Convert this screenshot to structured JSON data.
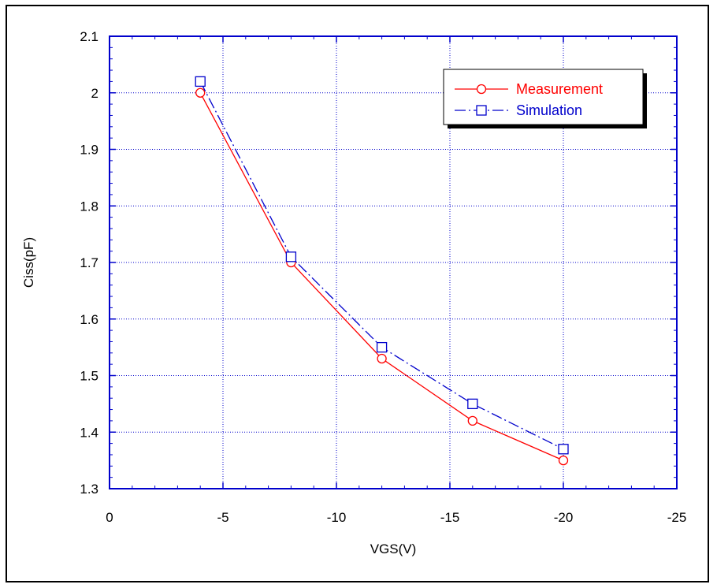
{
  "chart_data": {
    "type": "line",
    "title": "",
    "xlabel": "VGS(V)",
    "ylabel": "Ciss(pF)",
    "xlim": [
      0,
      -25
    ],
    "ylim": [
      1.3,
      2.1
    ],
    "x_ticks": [
      0,
      -5,
      -10,
      -15,
      -20,
      -25
    ],
    "x_tick_labels": [
      "0",
      "-5",
      "-10",
      "-15",
      "-20",
      "-25"
    ],
    "y_ticks": [
      1.3,
      1.4,
      1.5,
      1.6,
      1.7,
      1.8,
      1.9,
      2.0,
      2.1
    ],
    "y_tick_labels": [
      "1.3",
      "1.4",
      "1.5",
      "1.6",
      "1.7",
      "1.8",
      "1.9",
      "2",
      "2.1"
    ],
    "grid": true,
    "legend_position": "top-right",
    "series": [
      {
        "name": "Measurement",
        "marker": "circle",
        "line_style": "solid",
        "color": "#ff0000",
        "x": [
          -4,
          -8,
          -12,
          -16,
          -20
        ],
        "y": [
          2.0,
          1.7,
          1.53,
          1.42,
          1.35
        ]
      },
      {
        "name": "Simulation",
        "marker": "square",
        "line_style": "dash-dot",
        "color": "#0000cc",
        "x": [
          -4,
          -8,
          -12,
          -16,
          -20
        ],
        "y": [
          2.02,
          1.71,
          1.55,
          1.45,
          1.37
        ]
      }
    ]
  },
  "colors": {
    "axis": "#0000cc",
    "grid": "#0000cc",
    "measurement": "#ff0000",
    "simulation": "#0000cc"
  }
}
